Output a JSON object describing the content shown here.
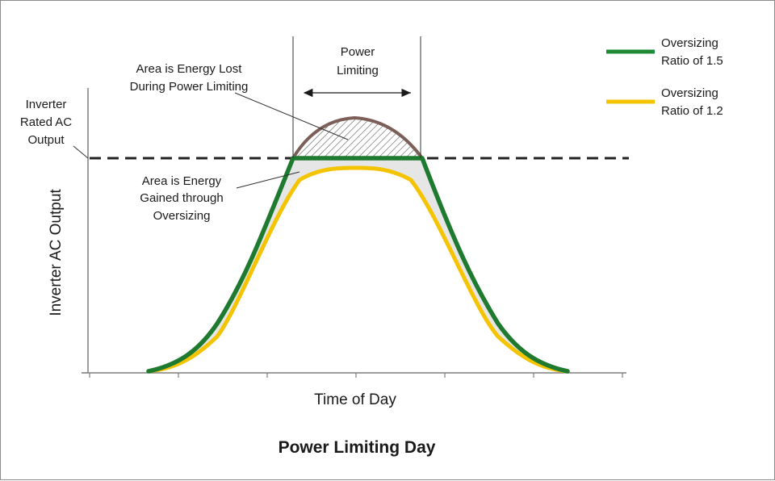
{
  "title": "Power Limiting Day",
  "xlabel": "Time of Day",
  "ylabel": "Inverter AC Output",
  "annotations": {
    "rated_line_1": "Inverter",
    "rated_line_2": "Rated AC",
    "rated_line_3": "Output",
    "lost_line_1": "Area is Energy Lost",
    "lost_line_2": "During Power Limiting",
    "gained_line_1": "Area is Energy",
    "gained_line_2": "Gained through",
    "gained_line_3": "Oversizing",
    "limit_line_1": "Power",
    "limit_line_2": "Limiting"
  },
  "legend": [
    {
      "line_1": "Oversizing",
      "line_2": "Ratio of 1.5",
      "color": "#1e8a36"
    },
    {
      "line_1": "Oversizing",
      "line_2": "Ratio of 1.2",
      "color": "#f5c400"
    }
  ],
  "colors": {
    "clipped_peak": "#7d5f5a",
    "rated_line": "#222222",
    "gained_fill": "#e6e6e6",
    "axis": "#7f7f7f"
  }
}
